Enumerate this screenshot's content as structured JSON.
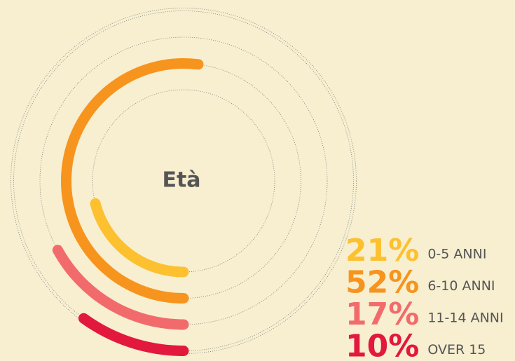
{
  "chart_data": {
    "type": "radial_bar",
    "title": "Età",
    "categories": [
      "0-5 ANNI",
      "6-10 ANNI",
      "11-14 ANNI",
      "OVER 15"
    ],
    "values": [
      21,
      52,
      17,
      10
    ],
    "value_labels": [
      "21%",
      "52%",
      "17%",
      "10%"
    ],
    "colors": [
      "#fdc02f",
      "#f7941d",
      "#f26b6c",
      "#e2183d"
    ],
    "ylim": [
      0,
      100
    ]
  }
}
